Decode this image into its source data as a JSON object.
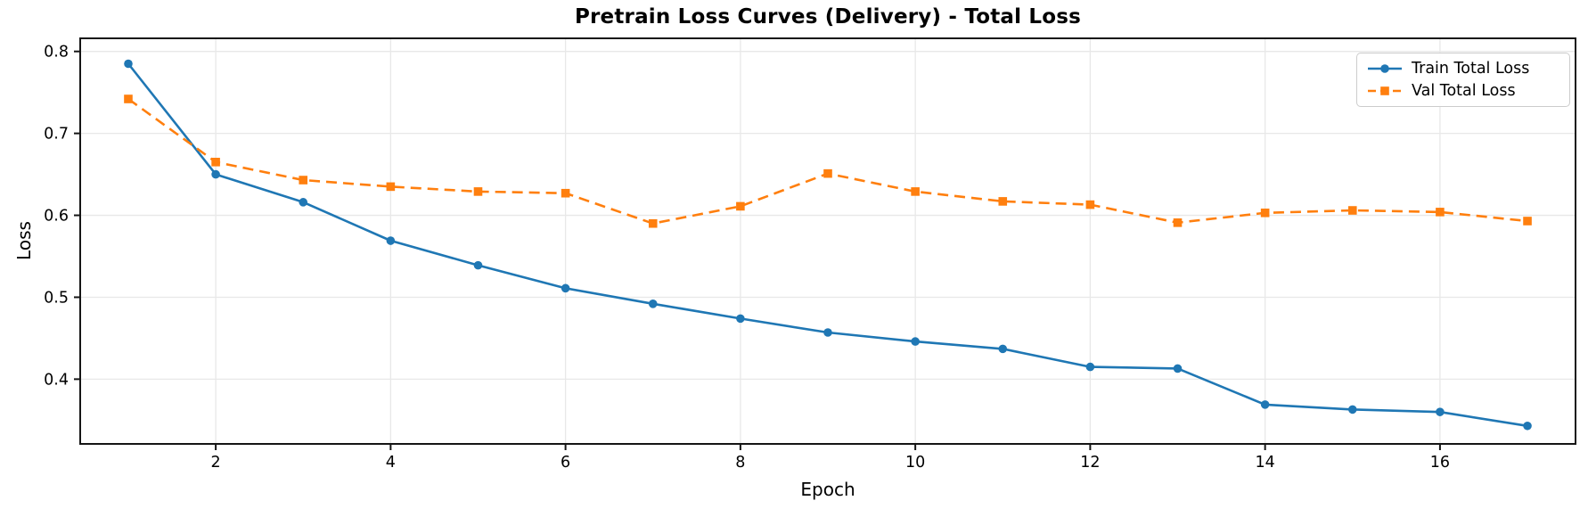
{
  "figure": {
    "background": "#ffffff"
  },
  "chart_data": {
    "type": "line",
    "title": "Pretrain Loss Curves (Delivery) - Total Loss",
    "xlabel": "Epoch",
    "ylabel": "Loss",
    "x": [
      1,
      2,
      3,
      4,
      5,
      6,
      7,
      8,
      9,
      10,
      11,
      12,
      13,
      14,
      15,
      16,
      17
    ],
    "series": [
      {
        "name": "Train Total Loss",
        "color": "#1f77b4",
        "linestyle": "solid",
        "marker": "circle",
        "values": [
          0.785,
          0.65,
          0.616,
          0.569,
          0.539,
          0.511,
          0.492,
          0.474,
          0.457,
          0.446,
          0.437,
          0.415,
          0.413,
          0.369,
          0.363,
          0.36,
          0.343
        ]
      },
      {
        "name": "Val Total Loss",
        "color": "#ff7f0e",
        "linestyle": "dashed",
        "marker": "square",
        "values": [
          0.742,
          0.665,
          0.643,
          0.635,
          0.629,
          0.627,
          0.59,
          0.611,
          0.651,
          0.629,
          0.617,
          0.613,
          0.591,
          0.603,
          0.606,
          0.604,
          0.593
        ]
      }
    ],
    "xticks": [
      2,
      4,
      6,
      8,
      10,
      12,
      14,
      16
    ],
    "yticks": [
      0.4,
      0.5,
      0.6,
      0.7,
      0.8
    ],
    "xlim": [
      0.45,
      17.55
    ],
    "ylim": [
      0.321,
      0.816
    ],
    "grid": true,
    "legend_position": "upper right",
    "grid_color": "#e8e8e8",
    "spine_color": "#151515",
    "tick_label_color": "#000000"
  }
}
